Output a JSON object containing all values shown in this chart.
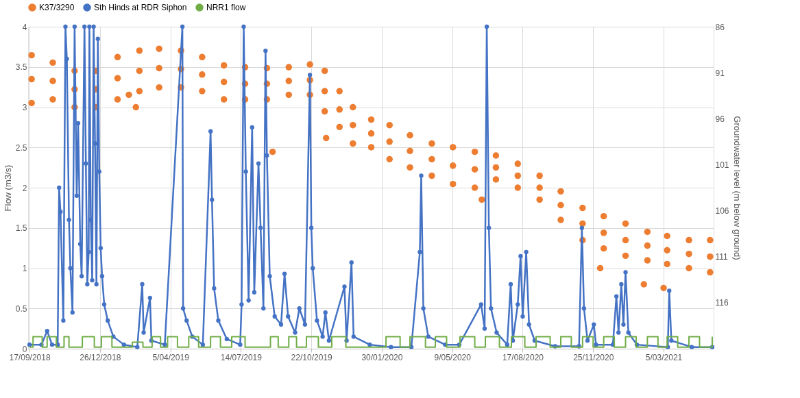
{
  "chart_data": {
    "type": "line",
    "xlabel": null,
    "ylabel": "Flow (m3/s)",
    "y2label": "Groundwater level (m below ground)",
    "xlim": [
      "2018-09-15",
      "2021-05-15"
    ],
    "xticks": [
      {
        "value": "2018-09-17",
        "label": "17/09/2018"
      },
      {
        "value": "2018-12-26",
        "label": "26/12/2018"
      },
      {
        "value": "2019-04-05",
        "label": "5/04/2019"
      },
      {
        "value": "2019-07-14",
        "label": "14/07/2019"
      },
      {
        "value": "2019-10-22",
        "label": "22/10/2019"
      },
      {
        "value": "2020-01-30",
        "label": "30/01/2020"
      },
      {
        "value": "2020-05-09",
        "label": "9/05/2020"
      },
      {
        "value": "2020-08-17",
        "label": "17/08/2020"
      },
      {
        "value": "2020-11-25",
        "label": "25/11/2020"
      },
      {
        "value": "2021-03-05",
        "label": "5/03/2021"
      }
    ],
    "ylim": [
      0,
      4
    ],
    "yticks": [
      0,
      0.5,
      1,
      1.5,
      2,
      2.5,
      3,
      3.5,
      4
    ],
    "y2lim": [
      121,
      86
    ],
    "y2ticks": [
      86,
      91,
      96,
      101,
      106,
      111,
      116
    ],
    "grid": true,
    "legend": "top",
    "series": [
      {
        "name": "K37/3290",
        "type": "scatter",
        "axis": "y2",
        "color": "#ed7d31",
        "marker": "circle",
        "x": [
          "2018-09-20",
          "2018-09-20",
          "2018-09-20",
          "2018-10-20",
          "2018-10-20",
          "2018-10-20",
          "2018-11-20",
          "2018-11-20",
          "2018-11-20",
          "2018-12-20",
          "2018-12-20",
          "2018-12-20",
          "2019-01-20",
          "2019-01-20",
          "2019-01-20",
          "2019-02-20",
          "2019-02-20",
          "2019-02-20",
          "2019-03-20",
          "2019-03-20",
          "2019-03-20",
          "2019-04-20",
          "2019-04-20",
          "2019-04-20",
          "2019-05-20",
          "2019-05-20",
          "2019-05-20",
          "2019-06-20",
          "2019-06-20",
          "2019-06-20",
          "2019-07-20",
          "2019-07-20",
          "2019-07-20",
          "2019-08-20",
          "2019-08-20",
          "2019-08-20",
          "2019-09-20",
          "2019-09-20",
          "2019-09-20",
          "2019-10-20",
          "2019-10-20",
          "2019-10-20",
          "2019-11-10",
          "2019-11-10",
          "2019-11-10",
          "2019-12-01",
          "2019-12-01",
          "2019-12-01",
          "2019-12-20",
          "2019-12-20",
          "2019-12-20",
          "2020-01-15",
          "2020-01-15",
          "2020-01-15",
          "2020-02-10",
          "2020-02-10",
          "2020-02-10",
          "2020-03-10",
          "2020-03-10",
          "2020-03-10",
          "2020-04-10",
          "2020-04-10",
          "2020-04-10",
          "2020-05-10",
          "2020-05-10",
          "2020-05-10",
          "2020-06-10",
          "2020-06-10",
          "2020-06-10",
          "2020-07-10",
          "2020-07-10",
          "2020-07-10",
          "2020-08-10",
          "2020-08-10",
          "2020-08-10",
          "2020-09-10",
          "2020-09-10",
          "2020-09-10",
          "2020-10-10",
          "2020-10-10",
          "2020-10-10",
          "2020-11-10",
          "2020-11-10",
          "2020-11-10",
          "2020-12-10",
          "2020-12-10",
          "2020-12-10",
          "2021-01-10",
          "2021-01-10",
          "2021-01-10",
          "2021-02-10",
          "2021-02-10",
          "2021-02-10",
          "2021-03-10",
          "2021-03-10",
          "2021-03-10",
          "2021-04-10",
          "2021-04-10",
          "2021-04-10",
          "2021-05-10",
          "2021-05-10",
          "2021-05-10",
          "2019-02-05",
          "2019-02-15",
          "2019-08-28",
          "2019-11-12",
          "2020-06-20",
          "2020-12-05",
          "2021-02-05",
          "2021-03-05"
        ],
        "values": [
          89.1,
          91.7,
          94.3,
          89.9,
          91.9,
          93.9,
          90.8,
          92.8,
          94.75,
          90.8,
          92.8,
          94.75,
          89.3,
          91.6,
          93.9,
          88.6,
          90.8,
          93.0,
          88.4,
          90.5,
          92.6,
          88.6,
          90.6,
          92.6,
          89.3,
          91.2,
          93.0,
          90.2,
          92.0,
          93.9,
          90.4,
          92.2,
          93.9,
          90.5,
          92.2,
          93.9,
          90.4,
          91.9,
          93.4,
          90.1,
          91.8,
          93.4,
          90.8,
          93.0,
          95.2,
          93.0,
          95.0,
          96.9,
          94.75,
          96.7,
          98.7,
          96.1,
          97.6,
          99.1,
          96.7,
          98.5,
          100.4,
          97.8,
          99.5,
          101.3,
          98.7,
          100.4,
          102.2,
          99.1,
          101.1,
          103.1,
          99.6,
          101.5,
          103.5,
          100.0,
          101.3,
          102.6,
          100.9,
          102.2,
          103.5,
          102.2,
          103.5,
          104.8,
          103.9,
          105.4,
          107.0,
          105.7,
          107.4,
          109.2,
          106.6,
          108.4,
          110.1,
          107.4,
          109.2,
          110.9,
          108.3,
          109.8,
          111.4,
          108.75,
          110.3,
          111.8,
          109.2,
          110.7,
          112.25,
          109.2,
          111.0,
          112.7,
          93.4,
          94.75,
          99.6,
          98.1,
          104.8,
          112.25,
          114.0,
          114.4
        ]
      },
      {
        "name": "Sth Hinds at RDR Siphon",
        "color": "#4472c4",
        "marker": "circle",
        "x": [
          "2018-09-17",
          "2018-10-04",
          "2018-10-12",
          "2018-10-19",
          "2018-10-27",
          "2018-10-29",
          "2018-10-31",
          "2018-11-04",
          "2018-11-07",
          "2018-11-09",
          "2018-11-12",
          "2018-11-14",
          "2018-11-17",
          "2018-11-20",
          "2018-11-23",
          "2018-11-25",
          "2018-11-28",
          "2018-11-30",
          "2018-12-04",
          "2018-12-06",
          "2018-12-08",
          "2018-12-10",
          "2018-12-11",
          "2018-12-13",
          "2018-12-15",
          "2018-12-17",
          "2018-12-19",
          "2018-12-21",
          "2018-12-23",
          "2018-12-25",
          "2018-12-27",
          "2018-12-29",
          "2019-01-01",
          "2019-01-06",
          "2019-01-14",
          "2019-01-29",
          "2019-02-17",
          "2019-02-24",
          "2019-02-26",
          "2019-03-07",
          "2019-03-09",
          "2019-03-28",
          "2019-04-22",
          "2019-04-23",
          "2019-04-28",
          "2019-05-06",
          "2019-05-21",
          "2019-06-01",
          "2019-06-03",
          "2019-06-06",
          "2019-06-12",
          "2019-06-24",
          "2019-07-13",
          "2019-07-15",
          "2019-07-18",
          "2019-07-21",
          "2019-07-25",
          "2019-07-30",
          "2019-08-02",
          "2019-08-08",
          "2019-08-11",
          "2019-08-15",
          "2019-08-18",
          "2019-08-20",
          "2019-08-24",
          "2019-08-31",
          "2019-09-09",
          "2019-09-14",
          "2019-09-19",
          "2019-09-29",
          "2019-10-05",
          "2019-10-13",
          "2019-10-20",
          "2019-10-22",
          "2019-10-24",
          "2019-10-30",
          "2019-11-07",
          "2019-11-11",
          "2019-11-16",
          "2019-12-08",
          "2019-12-11",
          "2019-12-18",
          "2019-12-21",
          "2020-01-13",
          "2020-02-12",
          "2020-03-12",
          "2020-03-24",
          "2020-03-26",
          "2020-03-29",
          "2020-04-05",
          "2020-04-29",
          "2020-05-19",
          "2020-06-19",
          "2020-06-24",
          "2020-06-27",
          "2020-06-30",
          "2020-07-03",
          "2020-07-11",
          "2020-07-26",
          "2020-07-31",
          "2020-08-03",
          "2020-08-10",
          "2020-08-14",
          "2020-08-17",
          "2020-08-22",
          "2020-08-26",
          "2020-09-03",
          "2020-10-02",
          "2020-11-05",
          "2020-11-09",
          "2020-11-12",
          "2020-11-17",
          "2020-11-26",
          "2020-11-29",
          "2020-12-23",
          "2020-12-28",
          "2020-12-31",
          "2021-01-04",
          "2021-01-07",
          "2021-01-10",
          "2021-01-14",
          "2021-01-26",
          "2021-03-11",
          "2021-03-13",
          "2021-03-16",
          "2021-04-14",
          "2021-05-13"
        ],
        "values": [
          0.05,
          0.05,
          0.22,
          0.05,
          0.05,
          2.0,
          1.7,
          0.35,
          4,
          3.6,
          1.6,
          1.0,
          0.45,
          4,
          1.9,
          2.8,
          1.3,
          0.9,
          4,
          2.3,
          0.8,
          1.2,
          4,
          1.6,
          0.85,
          4,
          2.55,
          0.8,
          3.85,
          2.2,
          1.25,
          0.9,
          0.55,
          0.35,
          0.15,
          0.05,
          0.02,
          0.8,
          0.2,
          0.63,
          0.1,
          0.05,
          4,
          0.5,
          0.35,
          0.15,
          0.05,
          2.7,
          1.85,
          0.75,
          0.35,
          0.12,
          0.05,
          0.55,
          4,
          2.2,
          0.6,
          2.75,
          0.7,
          2.3,
          1.5,
          0.5,
          3.7,
          2.4,
          0.9,
          0.4,
          0.3,
          0.93,
          0.4,
          0.2,
          0.5,
          0.3,
          3.4,
          1.5,
          1.0,
          0.35,
          0.15,
          0.45,
          0.1,
          0.77,
          0.1,
          1.07,
          0.15,
          0.05,
          0.02,
          0.02,
          1.2,
          2.15,
          0.5,
          0.15,
          0.05,
          0.05,
          0.55,
          0.25,
          4,
          1.5,
          0.5,
          0.2,
          0.05,
          0.8,
          0.1,
          0.55,
          1.15,
          0.4,
          1.2,
          0.3,
          0.1,
          0.03,
          0.03,
          1.5,
          0.5,
          0.1,
          0.3,
          0.05,
          0.05,
          0.65,
          0.2,
          0.8,
          0.3,
          0.95,
          0.2,
          0.05,
          0.02,
          0.72,
          0.1,
          0.02,
          0.02
        ]
      },
      {
        "name": "NRR1 flow",
        "type": "step",
        "color": "#70ad47",
        "marker": "none",
        "x": [
          "2018-09-17",
          "2018-09-22",
          "2018-10-05",
          "2018-10-12",
          "2018-10-25",
          "2018-11-05",
          "2018-11-12",
          "2018-12-01",
          "2018-12-18",
          "2018-12-28",
          "2019-01-12",
          "2019-02-10",
          "2019-02-25",
          "2019-03-10",
          "2019-03-22",
          "2019-04-01",
          "2019-04-15",
          "2019-05-01",
          "2019-05-15",
          "2019-06-01",
          "2019-06-15",
          "2019-07-01",
          "2019-07-20",
          "2019-08-25",
          "2019-09-05",
          "2019-09-20",
          "2019-10-01",
          "2019-10-15",
          "2019-11-01",
          "2019-11-20",
          "2019-12-10",
          "2020-01-20",
          "2020-02-05",
          "2020-02-25",
          "2020-03-10",
          "2020-04-01",
          "2020-04-15",
          "2020-05-01",
          "2020-05-20",
          "2020-06-10",
          "2020-06-25",
          "2020-07-15",
          "2020-08-01",
          "2020-08-20",
          "2020-09-05",
          "2020-09-25",
          "2020-10-10",
          "2020-10-25",
          "2020-11-10",
          "2020-11-25",
          "2020-12-10",
          "2020-12-25",
          "2021-01-10",
          "2021-01-25",
          "2021-02-10",
          "2021-02-25",
          "2021-03-10",
          "2021-03-25",
          "2021-04-10",
          "2021-04-25",
          "2021-05-13"
        ],
        "values": [
          0.02,
          0.15,
          0.02,
          0.15,
          0.02,
          0.15,
          0.02,
          0.15,
          0.02,
          0.15,
          0.02,
          0.08,
          0.02,
          0.15,
          0.02,
          0.15,
          0.02,
          0.15,
          0.02,
          0.15,
          0.02,
          0.15,
          0.02,
          0.15,
          0.02,
          0.15,
          0.02,
          0.15,
          0.02,
          0.15,
          0.02,
          0.02,
          0.15,
          0.02,
          0.15,
          0.02,
          0.15,
          0.02,
          0.15,
          0.02,
          0.15,
          0.02,
          0.15,
          0.02,
          0.15,
          0.02,
          0.15,
          0.02,
          0.15,
          0.02,
          0.15,
          0.02,
          0.15,
          0.02,
          0.15,
          0.02,
          0.15,
          0.02,
          0.15,
          0.02,
          0.15
        ]
      }
    ]
  }
}
